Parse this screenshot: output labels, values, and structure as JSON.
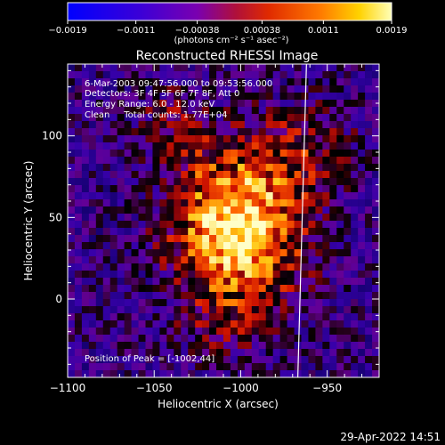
{
  "colorbar": {
    "tick_labels": [
      "-0.0019",
      "-0.0011",
      "-0.00038",
      "0.00038",
      "0.0011",
      "0.0019"
    ],
    "tick_values": [
      -0.0019,
      -0.0011,
      -0.00038,
      0.00038,
      0.0011,
      0.0019
    ],
    "range": [
      -0.0019,
      0.0019
    ],
    "units": "(photons cm⁻² s⁻¹ asec⁻²)"
  },
  "chart_data": {
    "type": "heatmap",
    "title": "Reconstructed RHESSI Image",
    "xlabel": "Heliocentric X (arcsec)",
    "ylabel": "Heliocentric Y (arcsec)",
    "xlim": [
      -1100,
      -920
    ],
    "ylim": [
      -48,
      144
    ],
    "x_ticks": [
      -1100,
      -1050,
      -1000,
      -950
    ],
    "y_ticks": [
      0,
      50,
      100
    ],
    "x_tick_labels": [
      "-1100",
      "-1050",
      "-1000",
      "-950"
    ],
    "y_tick_labels": [
      "0",
      "50",
      "100"
    ],
    "peak": [
      -1002,
      44
    ],
    "limb_line": [
      [
        -962,
        144
      ],
      [
        -967,
        -48
      ]
    ],
    "annotations": [
      "6-Mar-2003 09:47:56.000 to 09:53:56.000",
      "Detectors: 3F 4F 5F 6F 7F 8F, Att 0",
      "Energy Range: 6.0 - 12.0 keV",
      "Clean     Total counts: 1.77E+04"
    ],
    "peak_label": "Position of Peak = [-1002,44]"
  },
  "footer": {
    "timestamp": "29-Apr-2022 14:51"
  }
}
